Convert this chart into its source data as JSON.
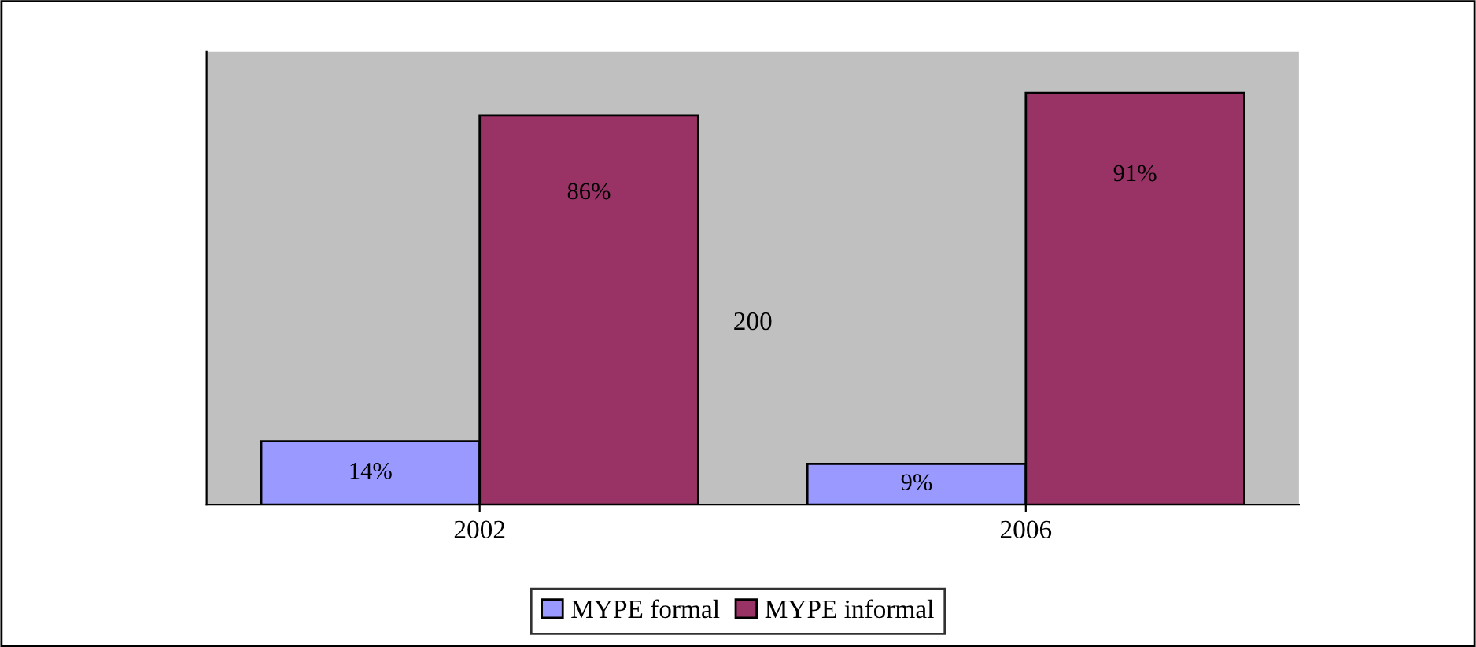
{
  "chart_data": {
    "type": "bar",
    "categories": [
      "2002",
      "2006"
    ],
    "series": [
      {
        "name": "MYPE formal",
        "color": "#9999ff",
        "values": [
          14,
          9
        ],
        "value_labels": [
          "14%",
          "9%"
        ]
      },
      {
        "name": "MYPE informal",
        "color": "#993366",
        "values": [
          86,
          91
        ],
        "value_labels": [
          "86%",
          "91%"
        ]
      }
    ],
    "annotations": [
      "200"
    ],
    "legend": "bottom",
    "grid": false
  }
}
